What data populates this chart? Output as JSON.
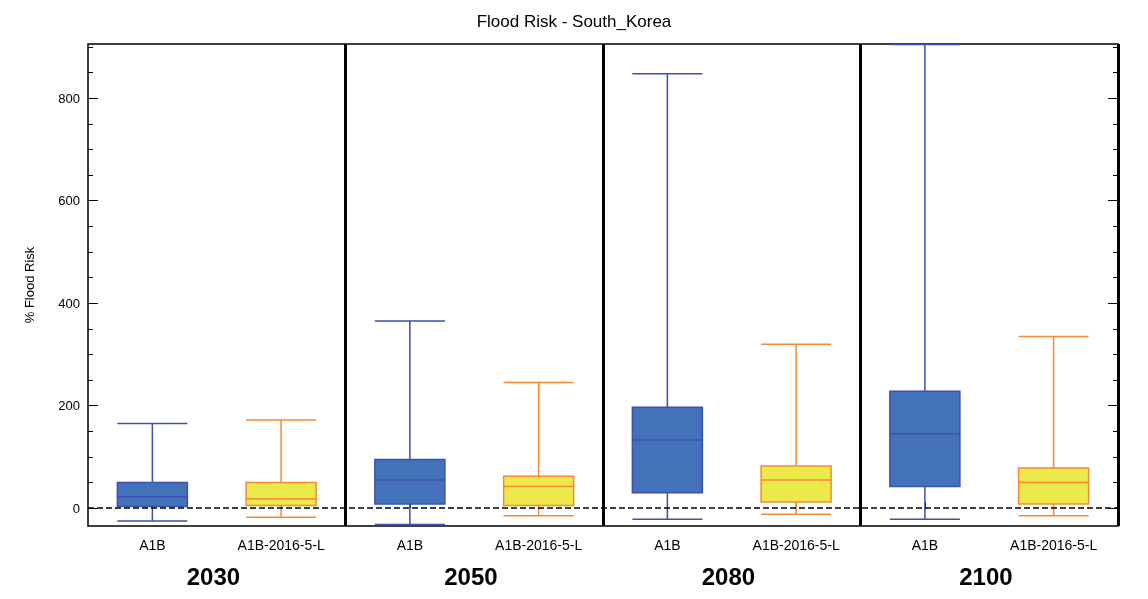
{
  "chart_data": {
    "type": "box",
    "title": "Flood Risk - South_Korea",
    "ylabel": "% Flood Risk",
    "categories": [
      "A1B",
      "A1B-2016-5-L",
      "A1B",
      "A1B-2016-5-L",
      "A1B",
      "A1B-2016-5-L",
      "A1B",
      "A1B-2016-5-L"
    ],
    "series": [
      {
        "color": "#3b50b0",
        "colors": [
          "#4472b8",
          null,
          "#4472b8",
          null,
          "#4472b8",
          null,
          "#4472b8",
          null
        ],
        "boxes": [
          {
            "low": -25,
            "q1": 3,
            "median": 22,
            "q3": 50,
            "high": 165
          },
          null,
          {
            "low": -32,
            "q1": 8,
            "median": 55,
            "q3": 95,
            "high": 365
          },
          null,
          {
            "low": -22,
            "q1": 30,
            "median": 133,
            "q3": 197,
            "high": 848
          },
          null,
          {
            "low": -22,
            "q1": 42,
            "median": 145,
            "q3": 228,
            "high": 905
          },
          null
        ]
      },
      {
        "color": "#f58a33",
        "colors": [
          null,
          "#ece94a",
          null,
          "#ece94a",
          null,
          "#ece94a",
          null,
          "#ece94a"
        ],
        "boxes": [
          null,
          {
            "low": -18,
            "q1": 5,
            "median": 18,
            "q3": 50,
            "high": 172
          },
          null,
          {
            "low": -15,
            "q1": 5,
            "median": 42,
            "q3": 62,
            "high": 245
          },
          null,
          {
            "low": -12,
            "q1": 12,
            "median": 55,
            "q3": 82,
            "high": 320
          },
          null,
          {
            "low": -15,
            "q1": 8,
            "median": 50,
            "q3": 78,
            "high": 335
          }
        ]
      }
    ],
    "ylim": [
      -35,
      906
    ],
    "yticks": [
      0,
      {
        "value": 50,
        "label": null
      },
      {
        "value": 100,
        "label": null
      },
      {
        "value": 150,
        "label": null
      },
      200,
      {
        "value": 250,
        "label": null
      },
      {
        "value": 300,
        "label": null
      },
      {
        "value": 350,
        "label": null
      },
      400,
      {
        "value": 450,
        "label": null
      },
      {
        "value": 500,
        "label": null
      },
      {
        "value": 550,
        "label": null
      },
      600,
      {
        "value": 650,
        "label": null
      },
      {
        "value": 700,
        "label": null
      },
      {
        "value": 750,
        "label": null
      },
      800,
      {
        "value": 850,
        "label": null
      },
      {
        "value": 900,
        "label": null
      }
    ],
    "ref_lines": [
      {
        "axis": "y",
        "value": 0,
        "label": null,
        "color": "#000000",
        "line_style": "dashed"
      }
    ],
    "annotations": [
      "2030",
      "2050",
      "2080",
      "2100"
    ]
  }
}
